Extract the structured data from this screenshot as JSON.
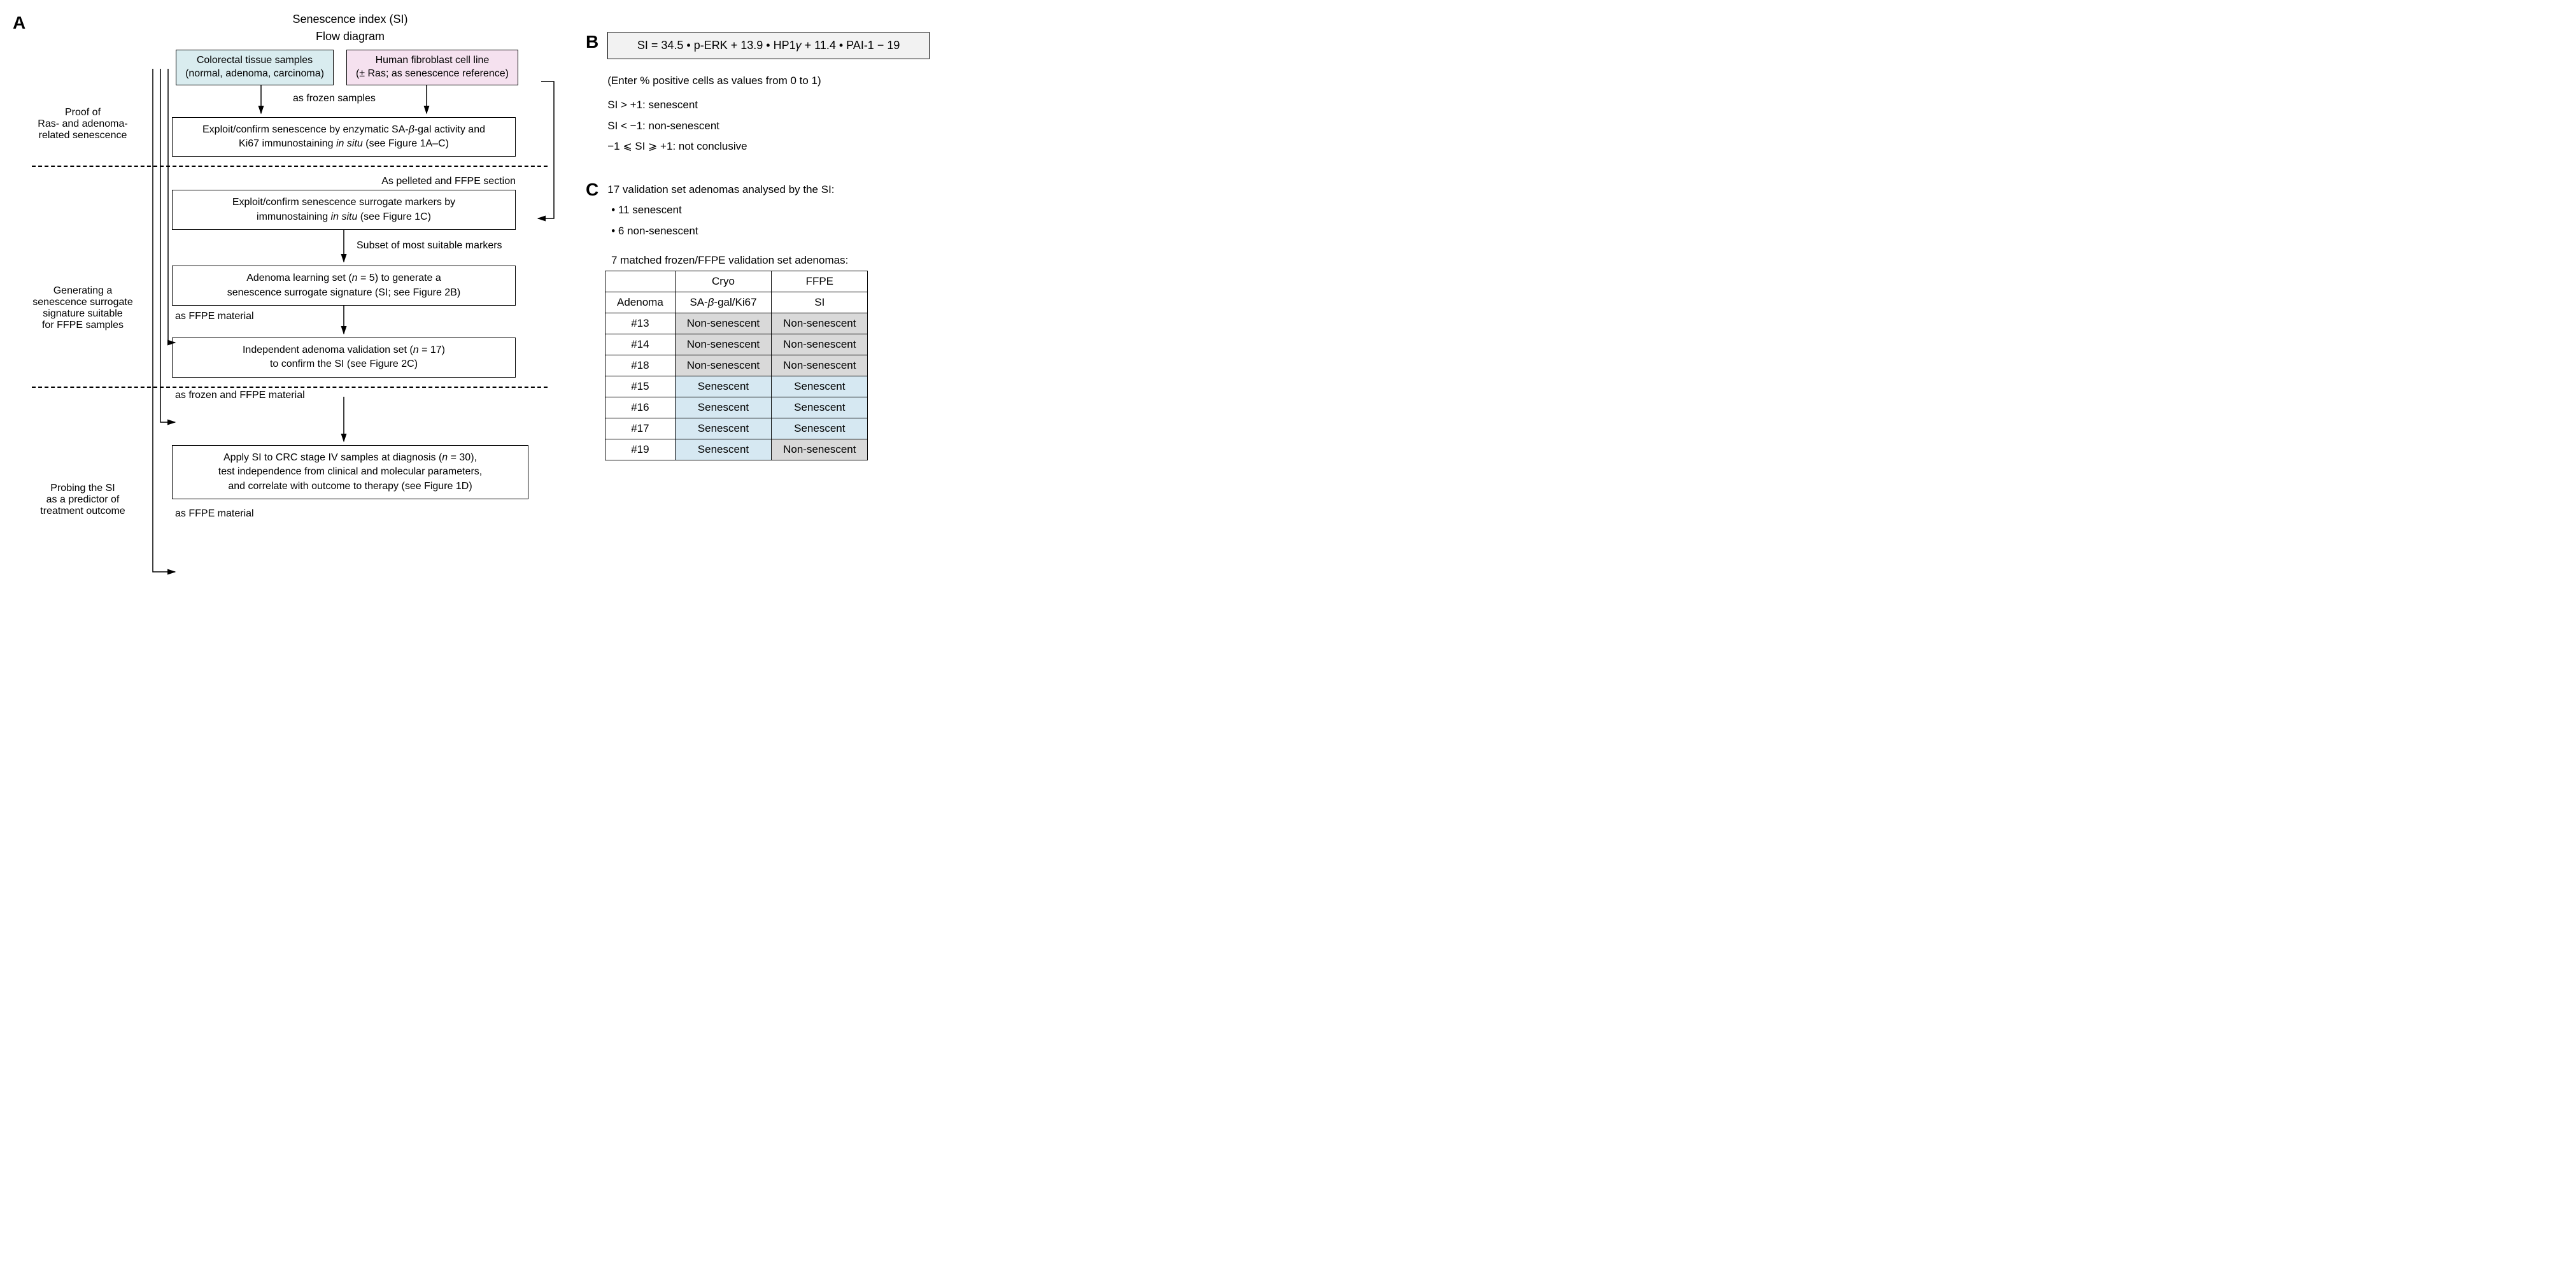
{
  "panelA": {
    "label": "A",
    "title1": "Senescence index (SI)",
    "title2": "Flow diagram",
    "srcBox1_l1": "Colorectal tissue samples",
    "srcBox1_l2": "(normal, adenoma, carcinoma)",
    "srcBox2_l1": "Human fibroblast cell line",
    "srcBox2_l2": "(± Ras; as senescence reference)",
    "asFrozen": "as frozen samples",
    "step1_l1": "Exploit/confirm senescence by enzymatic SA-",
    "step1_beta": "β",
    "step1_l1b": "-gal activity and",
    "step1_l2a": "Ki67 immunostaining ",
    "step1_insitu": "in situ",
    "step1_l2b": " (see Figure 1A–C)",
    "side1_l1": "Proof of",
    "side1_l2": "Ras- and adenoma-",
    "side1_l3": "related senescence",
    "asPelleted": "As pelleted and FFPE section",
    "step2_l1": "Exploit/confirm senescence surrogate markers by",
    "step2_l2a": "immunostaining ",
    "step2_insitu": "in situ",
    "step2_l2b": " (see Figure 1C)",
    "subset": "Subset of most suitable markers",
    "asFFPE": "as FFPE material",
    "step3_l1": "Adenoma learning set (",
    "step3_n": "n",
    "step3_l1b": " = 5) to generate a",
    "step3_l2": "senescence surrogate signature (SI; see Figure 2B)",
    "asFrozenFFPE": "as frozen and FFPE material",
    "step4_l1": "Independent adenoma validation set (",
    "step4_n": "n",
    "step4_l1b": " = 17)",
    "step4_l2": "to confirm the SI (see Figure 2C)",
    "side2_l1": "Generating a",
    "side2_l2": "senescence surrogate",
    "side2_l3": "signature suitable",
    "side2_l4": "for FFPE samples",
    "side3_l1": "Probing the SI",
    "side3_l2": "as a predictor of",
    "side3_l3": "treatment outcome",
    "asFFPE2": "as FFPE material",
    "step5_l1a": "Apply SI to CRC stage IV samples at diagnosis (",
    "step5_n": "n",
    "step5_l1b": " = 30),",
    "step5_l2": "test independence from clinical and molecular parameters,",
    "step5_l3": "and correlate with outcome to therapy (see Figure 1D)"
  },
  "panelB": {
    "label": "B",
    "formula_a": "SI = 34.5 • p-ERK + 13.9 • HP1",
    "formula_gamma": "γ",
    "formula_b": " + 11.4 • PAI-1 − 19",
    "enter": "(Enter % positive cells as values from 0 to 1)",
    "r1": "SI > +1: senescent",
    "r2": "SI < −1: non-senescent",
    "r3": "−1 ⩽ SI ⩾ +1: not conclusive"
  },
  "panelC": {
    "label": "C",
    "l1": "17 validation set adenomas analysed by the SI:",
    "l2": "• 11 senescent",
    "l3": "• 6 non-senescent",
    "tableTitle": "7 matched frozen/FFPE validation set adenomas:",
    "headers": [
      "",
      "Cryo",
      "FFPE"
    ],
    "subheaders_a": "Adenoma",
    "subheaders_b1": "SA-",
    "subheaders_beta": "β",
    "subheaders_b2": "-gal/Ki67",
    "subheaders_c": "SI",
    "rows": [
      {
        "id": "#13",
        "cryo": "Non-senescent",
        "ffpe": "Non-senescent",
        "cryoClass": "cell-grey",
        "ffpeClass": "cell-grey"
      },
      {
        "id": "#14",
        "cryo": "Non-senescent",
        "ffpe": "Non-senescent",
        "cryoClass": "cell-grey",
        "ffpeClass": "cell-grey"
      },
      {
        "id": "#18",
        "cryo": "Non-senescent",
        "ffpe": "Non-senescent",
        "cryoClass": "cell-grey",
        "ffpeClass": "cell-grey"
      },
      {
        "id": "#15",
        "cryo": "Senescent",
        "ffpe": "Senescent",
        "cryoClass": "cell-blue",
        "ffpeClass": "cell-blue"
      },
      {
        "id": "#16",
        "cryo": "Senescent",
        "ffpe": "Senescent",
        "cryoClass": "cell-blue",
        "ffpeClass": "cell-blue"
      },
      {
        "id": "#17",
        "cryo": "Senescent",
        "ffpe": "Senescent",
        "cryoClass": "cell-blue",
        "ffpeClass": "cell-blue"
      },
      {
        "id": "#19",
        "cryo": "Senescent",
        "ffpe": "Non-senescent",
        "cryoClass": "cell-blue",
        "ffpeClass": "cell-grey"
      }
    ]
  },
  "style": {
    "colors": {
      "boxBlue": "#d9ecef",
      "boxPink": "#f5e1ef",
      "cellGrey": "#d9d9d9",
      "cellBlue": "#d6e8f2",
      "formulaBg": "#f2f2f2",
      "text": "#000000",
      "background": "#ffffff"
    },
    "fontsize": {
      "panelLabel": 28,
      "body": 17,
      "flow": 16
    }
  }
}
